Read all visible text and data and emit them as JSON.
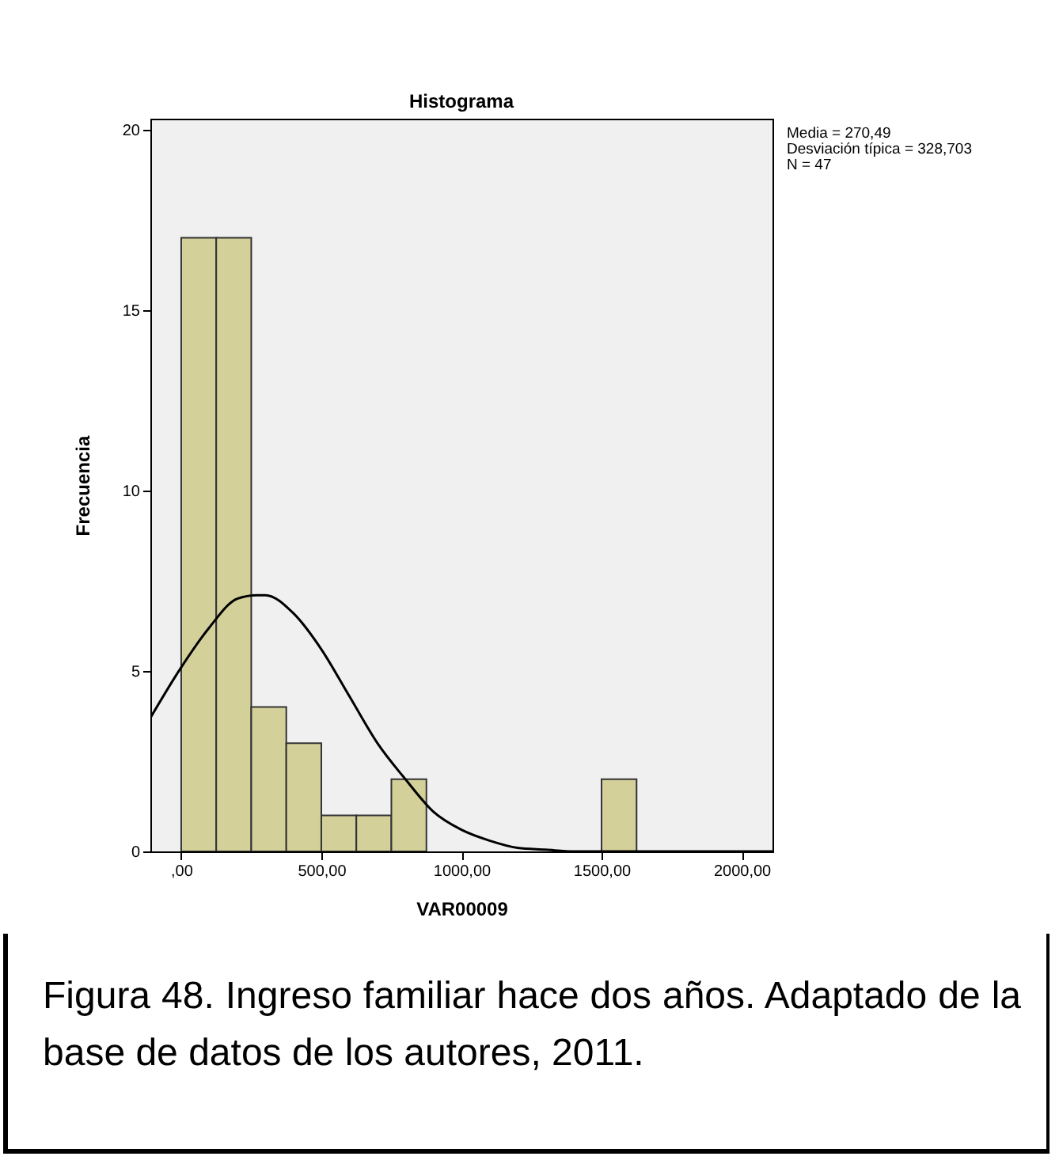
{
  "chart_data": {
    "type": "histogram",
    "title": "Histograma",
    "xlabel": "VAR00009",
    "ylabel": "Frecuencia",
    "bins": [
      0,
      125,
      250,
      375,
      500,
      625,
      750,
      875,
      1000,
      1125,
      1250,
      1375,
      1500,
      1625
    ],
    "values": [
      17,
      17,
      4,
      3,
      1,
      1,
      2,
      0,
      0,
      0,
      0,
      0,
      2
    ],
    "color": "#d4d09a",
    "series": [
      {
        "type": "line",
        "color": "#000000",
        "x": [
          -110,
          0,
          100,
          200,
          270,
          300,
          400,
          500,
          600,
          700,
          800,
          900,
          1000,
          1100,
          1200,
          1300,
          1400,
          1500,
          1700,
          1900,
          2110
        ],
        "values": [
          3.7,
          5.1,
          6.2,
          7.0,
          7.1,
          7.1,
          6.6,
          5.6,
          4.3,
          3.0,
          2.0,
          1.1,
          0.6,
          0.3,
          0.1,
          0.05,
          0,
          0,
          0,
          0,
          0
        ]
      }
    ],
    "xlim": [
      -110,
      2110
    ],
    "xticks": [
      {
        "value": 0,
        "label": ",00"
      },
      {
        "value": 500,
        "label": "500,00"
      },
      {
        "value": 1000,
        "label": "1000,00"
      },
      {
        "value": 1500,
        "label": "1500,00"
      },
      {
        "value": 2000,
        "label": "2000,00"
      }
    ],
    "ylim": [
      0,
      20.3
    ],
    "yticks": [
      0,
      5,
      10,
      15,
      20
    ],
    "grid": false,
    "annotations": [
      "Media = 270,49",
      "Desviación típica = 328,703",
      "N = 47",
      "Figura 48. Ingreso familiar hace dos años. Adaptado de la base de datos de los autores, 2011."
    ]
  }
}
